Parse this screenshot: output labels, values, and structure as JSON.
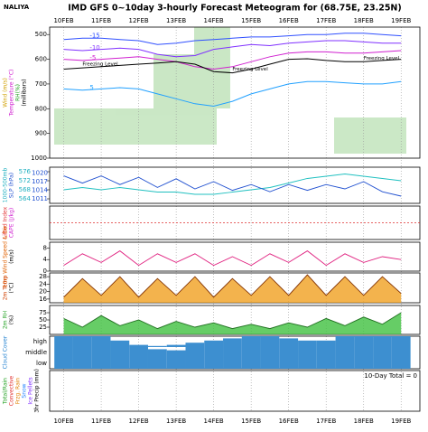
{
  "station": "NALIYA",
  "title": "IMD GFS 0~10day 3-hourly Forecast Meteogram for (68.75E, 23.25N)",
  "x": [
    0,
    12,
    24,
    36,
    48,
    60,
    72,
    84,
    96,
    108,
    120,
    132,
    144,
    156,
    168,
    180,
    192,
    204,
    216
  ],
  "xlim": [
    -9,
    228
  ],
  "xticks": [
    {
      "value": 0,
      "label": "10FEB"
    },
    {
      "value": 24,
      "label": "11FEB"
    },
    {
      "value": 48,
      "label": "12FEB"
    },
    {
      "value": 72,
      "label": "13FEB"
    },
    {
      "value": 96,
      "label": "14FEB"
    },
    {
      "value": 120,
      "label": "15FEB"
    },
    {
      "value": 144,
      "label": "16FEB"
    },
    {
      "value": 168,
      "label": "17FEB"
    },
    {
      "value": 192,
      "label": "18FEB"
    },
    {
      "value": 216,
      "label": "19FEB"
    }
  ],
  "chart_data": [
    {
      "type": "line",
      "ylabels": [
        "Wind (m/s)",
        "Temperature (°C)",
        "RH(%)",
        "(millibars)"
      ],
      "ylabel_colors": [
        "#d0a000",
        "#d020d0",
        "#20a020",
        "#000000"
      ],
      "ylim": [
        1000,
        470
      ],
      "yticks": [
        500,
        600,
        700,
        800,
        900,
        1000
      ],
      "annotations": [
        "Freezing Level",
        "Freezing Level",
        "Freezing Level"
      ],
      "series": [
        {
          "name": "-15",
          "color": "#3050ff",
          "values": [
            520,
            515,
            515,
            520,
            525,
            540,
            535,
            525,
            520,
            515,
            510,
            510,
            505,
            500,
            500,
            495,
            495,
            500,
            505
          ]
        },
        {
          "name": "-10",
          "color": "#8030ff",
          "values": [
            560,
            565,
            560,
            555,
            560,
            580,
            590,
            585,
            560,
            550,
            540,
            545,
            535,
            530,
            525,
            525,
            530,
            535,
            535
          ]
        },
        {
          "name": "-5",
          "color": "#d020d0",
          "values": [
            600,
            605,
            600,
            595,
            590,
            600,
            610,
            630,
            640,
            630,
            610,
            590,
            575,
            570,
            570,
            575,
            575,
            570,
            565
          ]
        },
        {
          "name": "Freezing Level",
          "color": "#000000",
          "values": [
            640,
            635,
            630,
            625,
            620,
            615,
            610,
            620,
            650,
            655,
            640,
            620,
            600,
            598,
            605,
            610,
            610,
            605,
            600
          ]
        },
        {
          "name": "5",
          "color": "#20a0ff",
          "values": [
            720,
            725,
            720,
            715,
            720,
            740,
            760,
            780,
            790,
            770,
            740,
            720,
            700,
            690,
            690,
            695,
            700,
            700,
            690
          ]
        }
      ]
    },
    {
      "type": "line",
      "ylabels": [
        "1000-500mb",
        "SLP (hPa)"
      ],
      "ylabel_colors": [
        "#20b0c0",
        "#2050d0"
      ],
      "ylim": [
        562,
        578
      ],
      "yticks": [
        564,
        568,
        572,
        576
      ],
      "y2lim": [
        1009.5,
        1022
      ],
      "y2ticks": [
        1011,
        1014,
        1017,
        1020
      ],
      "series": [
        {
          "name": "1000-500mb",
          "color": "#20c0c0",
          "values": [
            568,
            569,
            568,
            569,
            568,
            567,
            567,
            566,
            566,
            567,
            568,
            569,
            571,
            573,
            574,
            575,
            574,
            573,
            572
          ]
        },
        {
          "name": "SLP (hPa)",
          "color": "#2050d0",
          "axis": "y2",
          "values": [
            1019,
            1016.5,
            1019,
            1016,
            1018.5,
            1015,
            1018,
            1014.5,
            1017,
            1014,
            1016,
            1013.5,
            1016,
            1014,
            1016,
            1014.5,
            1017,
            1013.5,
            1012
          ]
        }
      ]
    },
    {
      "type": "line",
      "ylabels": [
        "Lifted Index",
        "CAPE (J/kg)"
      ],
      "ylabel_colors": [
        "#e03030",
        "#d020d0"
      ],
      "series": []
    },
    {
      "type": "line",
      "ylabels": [
        "10m Wind Speed & Dir",
        "(m/s)"
      ],
      "ylabel_colors": [
        "#e06000",
        "#000000"
      ],
      "ylim": [
        0,
        10
      ],
      "yticks": [
        0,
        4,
        8
      ],
      "series": [
        {
          "name": "10m Wind Speed & Dir",
          "color": "#e0207f",
          "values": [
            2,
            6,
            3,
            7,
            2,
            6,
            3,
            6,
            2,
            5,
            2,
            6,
            3,
            7,
            2,
            6,
            3,
            5,
            4
          ]
        }
      ]
    },
    {
      "type": "line",
      "ylabels": [
        "2m Temp",
        "(°C)"
      ],
      "ylabel_colors": [
        "#d04000",
        "#000000"
      ],
      "ylim": [
        14,
        30
      ],
      "yticks": [
        16,
        20,
        24,
        28
      ],
      "fill": "#f0a020",
      "series": [
        {
          "name": "2m Temp",
          "color": "#803000",
          "values": [
            17,
            27,
            18,
            28,
            17,
            27,
            18,
            28,
            17,
            27,
            18,
            28,
            18,
            29,
            18,
            28,
            18,
            28,
            19
          ]
        }
      ]
    },
    {
      "type": "line",
      "ylabels": [
        "2m RH",
        "(%)"
      ],
      "ylabel_colors": [
        "#20a020",
        "#000000"
      ],
      "ylim": [
        0,
        100
      ],
      "yticks": [
        25,
        50,
        75
      ],
      "fill": "#40c040",
      "series": [
        {
          "name": "2m RH",
          "color": "#207020",
          "values": [
            55,
            25,
            65,
            30,
            50,
            20,
            45,
            25,
            40,
            20,
            35,
            20,
            40,
            25,
            55,
            30,
            60,
            35,
            75
          ]
        }
      ]
    },
    {
      "type": "bar",
      "ylabels": [
        "Cloud Cover"
      ],
      "ylabel_colors": [
        "#2080d0"
      ],
      "series": [
        {
          "name": "high",
          "color": "#3d8fd0",
          "values": [
            100,
            100,
            100,
            60,
            20,
            10,
            20,
            40,
            60,
            80,
            100,
            100,
            80,
            60,
            60,
            100,
            100,
            100,
            100
          ]
        },
        {
          "name": "middle",
          "color": "#3d8fd0",
          "values": [
            100,
            100,
            100,
            100,
            100,
            80,
            70,
            100,
            100,
            100,
            100,
            100,
            100,
            100,
            100,
            100,
            100,
            100,
            100
          ]
        },
        {
          "name": "low",
          "color": "#3d8fd0",
          "values": [
            100,
            100,
            100,
            100,
            100,
            100,
            100,
            100,
            100,
            100,
            100,
            100,
            100,
            100,
            100,
            100,
            100,
            100,
            100
          ]
        }
      ]
    },
    {
      "type": "bar",
      "ylabels": [
        "Total/Rain",
        "Convective",
        "Frzg. Rain",
        "Snow",
        "Ice Pellets",
        "3hr Precip (mm)"
      ],
      "ylabel_colors": [
        "#20a020",
        "#e03030",
        "#e08000",
        "#2080ff",
        "#8030ff",
        "#000000"
      ],
      "ylim": [
        0,
        1
      ],
      "annotations": [
        "10-Day Total = 0"
      ],
      "series": [
        {
          "name": "3hr Precip (mm)",
          "color": "#20a020",
          "values": [
            0,
            0,
            0,
            0,
            0,
            0,
            0,
            0,
            0,
            0,
            0,
            0,
            0,
            0,
            0,
            0,
            0,
            0,
            0
          ]
        }
      ]
    }
  ]
}
